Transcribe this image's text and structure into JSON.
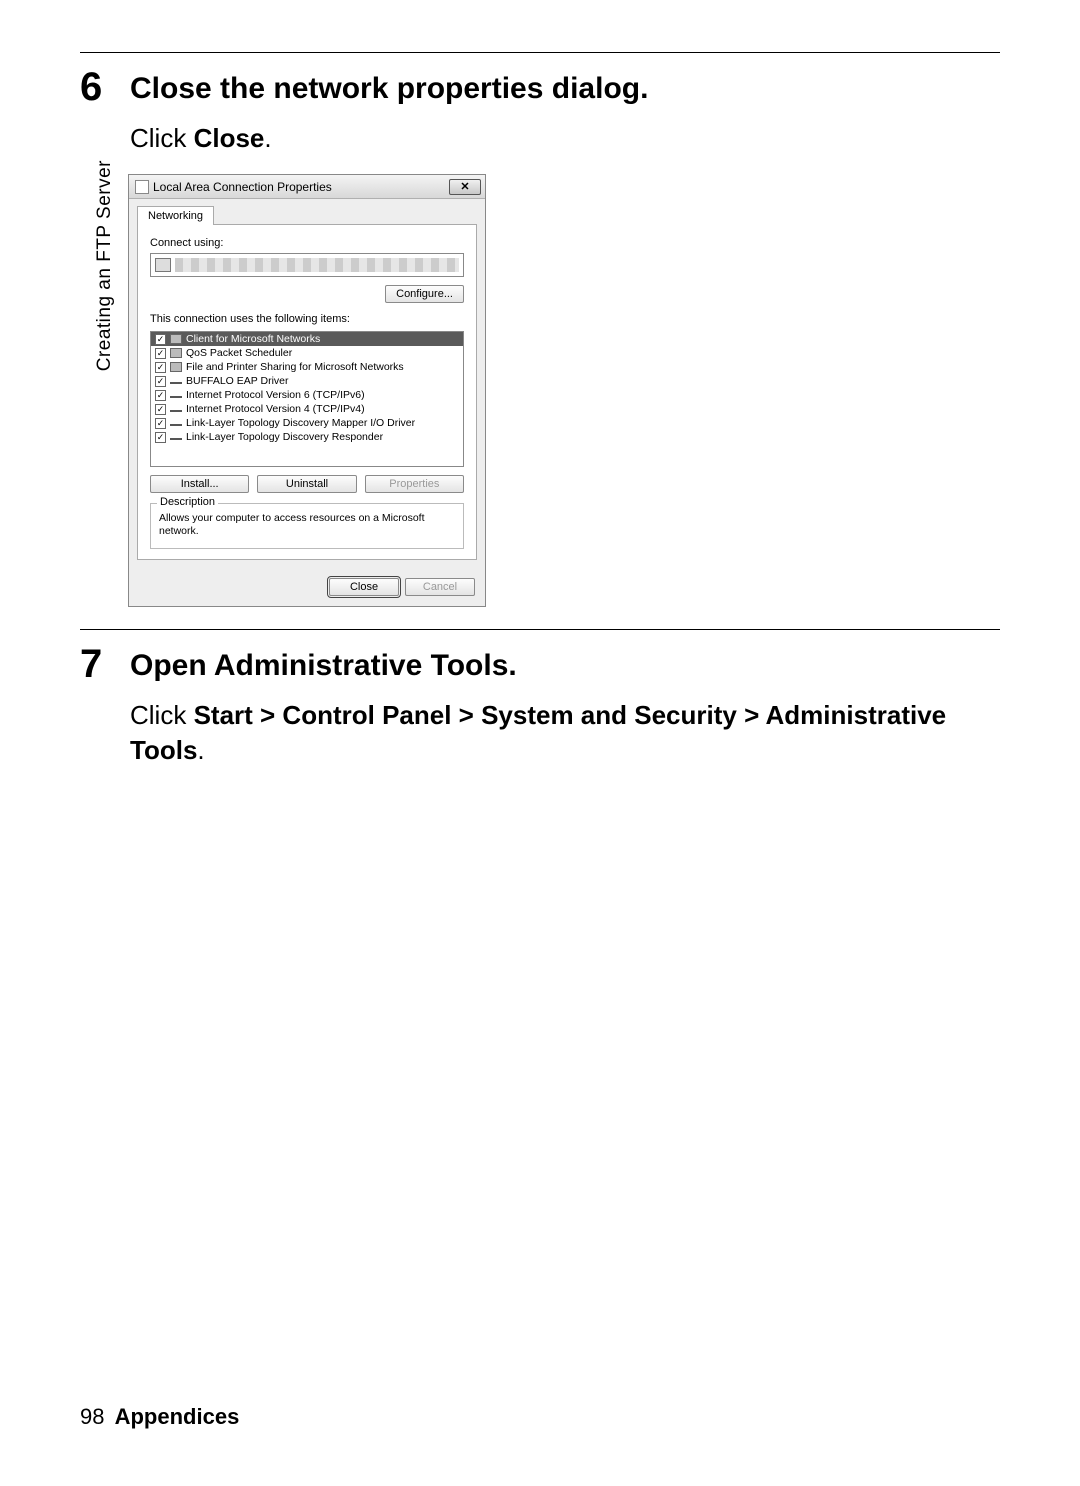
{
  "side_label": "Creating an FTP Server",
  "step6": {
    "num": "6",
    "title": "Close the network properties dialog.",
    "sub_prefix": "Click ",
    "sub_bold": "Close",
    "sub_suffix": "."
  },
  "dialog": {
    "title": "Local Area Connection Properties",
    "tab": "Networking",
    "connect_using_label": "Connect using:",
    "configure_btn": "Configure...",
    "items_label": "This connection uses the following items:",
    "items": [
      {
        "label": "Client for Microsoft Networks",
        "icon": "net",
        "selected": true
      },
      {
        "label": "QoS Packet Scheduler",
        "icon": "net",
        "selected": false
      },
      {
        "label": "File and Printer Sharing for Microsoft Networks",
        "icon": "net",
        "selected": false
      },
      {
        "label": "BUFFALO EAP Driver",
        "icon": "proto",
        "selected": false
      },
      {
        "label": "Internet Protocol Version 6 (TCP/IPv6)",
        "icon": "proto",
        "selected": false
      },
      {
        "label": "Internet Protocol Version 4 (TCP/IPv4)",
        "icon": "proto",
        "selected": false
      },
      {
        "label": "Link-Layer Topology Discovery Mapper I/O Driver",
        "icon": "proto",
        "selected": false
      },
      {
        "label": "Link-Layer Topology Discovery Responder",
        "icon": "proto",
        "selected": false
      }
    ],
    "install_btn": "Install...",
    "uninstall_btn": "Uninstall",
    "properties_btn": "Properties",
    "desc_label": "Description",
    "desc_text": "Allows your computer to access resources on a Microsoft network.",
    "close_btn": "Close",
    "cancel_btn": "Cancel"
  },
  "step7": {
    "num": "7",
    "title": "Open Administrative Tools.",
    "sub_prefix": "Click ",
    "sub_bold": "Start > Control Panel > System and Security > Administrative Tools",
    "sub_suffix": "."
  },
  "footer": {
    "page": "98",
    "section": "Appendices"
  },
  "colors": {
    "rule": "#000000",
    "dialog_border": "#888888",
    "selected_bg": "#5a5a5a"
  }
}
